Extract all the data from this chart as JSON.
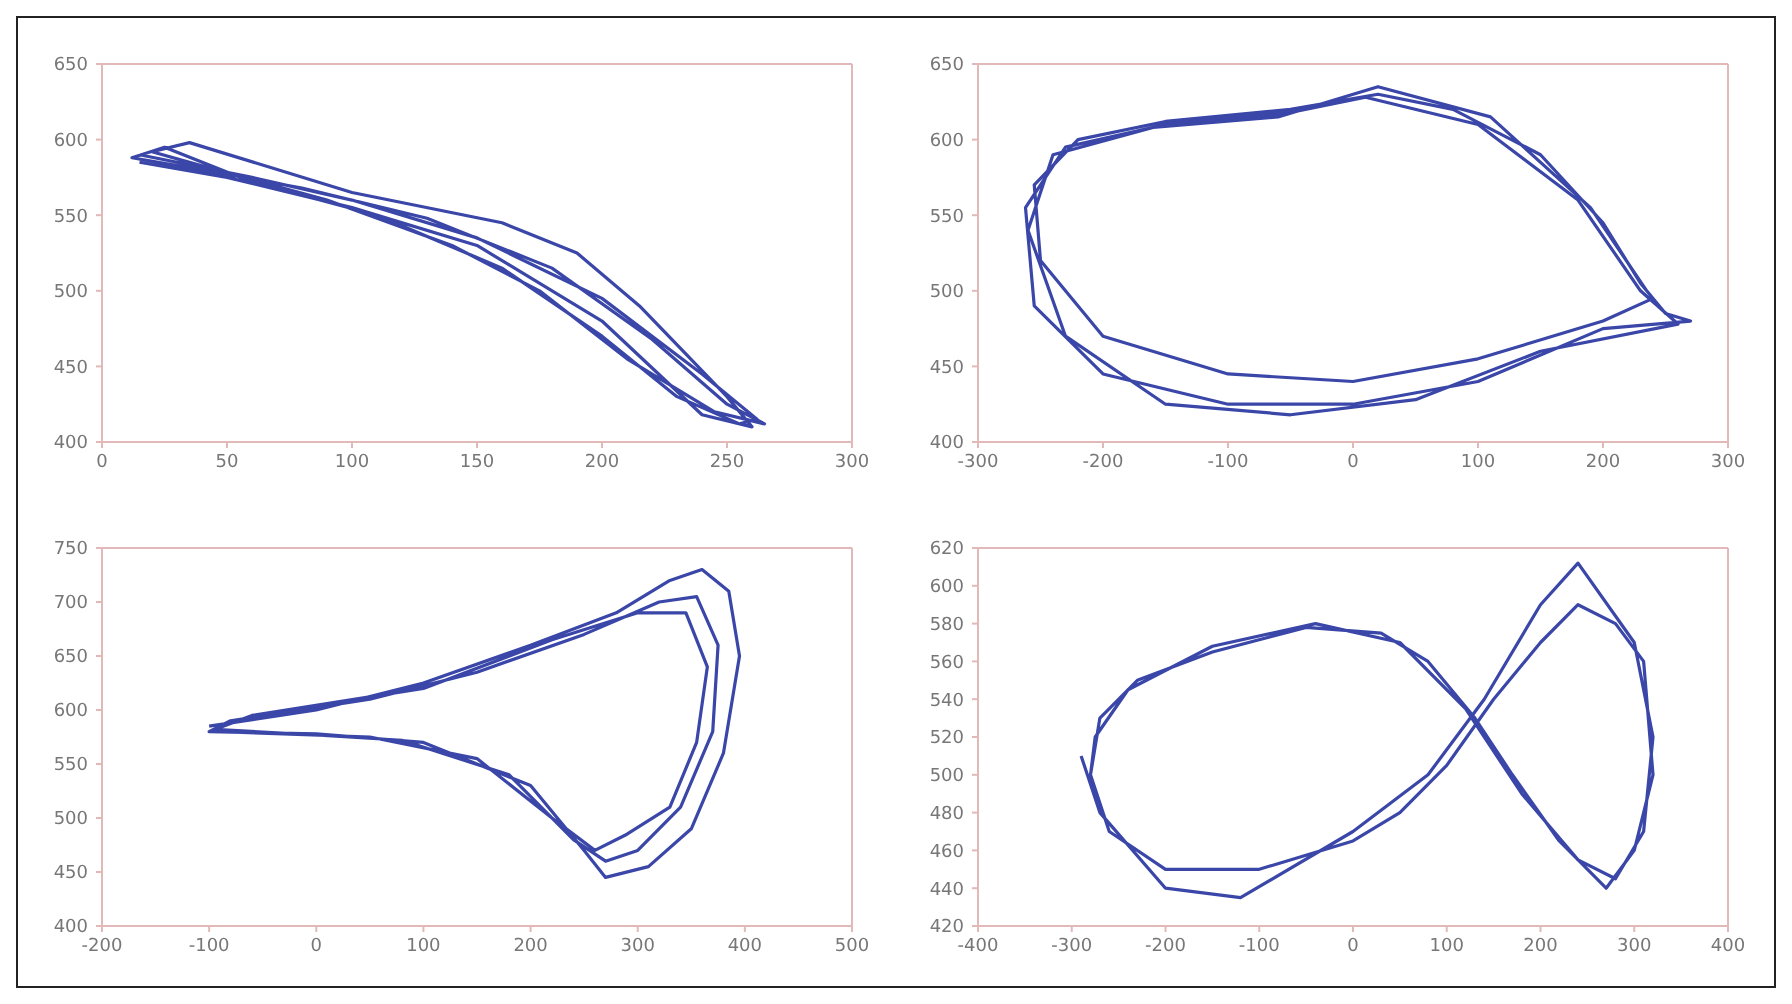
{
  "chart_data": [
    {
      "type": "line",
      "marker": "none",
      "grid": false,
      "xlim": [
        0,
        300
      ],
      "xticks": [
        0,
        50,
        100,
        150,
        200,
        250,
        300
      ],
      "ylim": [
        400,
        650
      ],
      "yticks": [
        400,
        450,
        500,
        550,
        600,
        650
      ],
      "series": [
        {
          "color": "#3a46a8",
          "x": [
            15,
            30,
            60,
            100,
            150,
            200,
            240,
            262,
            255,
            230,
            200,
            160,
            110,
            60,
            25,
            12,
            40,
            80,
            130,
            180,
            220,
            250,
            265,
            245,
            210,
            175,
            140,
            90,
            50,
            20,
            35,
            100,
            160,
            190,
            215,
            250,
            260,
            240,
            200,
            150,
            100,
            50,
            15
          ],
          "values": [
            590,
            585,
            575,
            560,
            535,
            495,
            445,
            415,
            412,
            430,
            470,
            515,
            550,
            572,
            595,
            588,
            580,
            568,
            548,
            515,
            468,
            425,
            412,
            420,
            455,
            500,
            530,
            560,
            578,
            592,
            598,
            565,
            545,
            525,
            490,
            430,
            410,
            418,
            480,
            530,
            555,
            575,
            585
          ]
        }
      ]
    },
    {
      "type": "line",
      "marker": "none",
      "grid": false,
      "xlim": [
        -300,
        300
      ],
      "xticks": [
        -300,
        -200,
        -100,
        0,
        100,
        200,
        300
      ],
      "ylim": [
        400,
        650
      ],
      "yticks": [
        400,
        450,
        500,
        550,
        600,
        650
      ],
      "series": [
        {
          "color": "#3a46a8",
          "x": [
            240,
            200,
            100,
            0,
            -100,
            -200,
            -250,
            -255,
            -220,
            -150,
            -50,
            20,
            80,
            150,
            200,
            230,
            250,
            270,
            200,
            100,
            0,
            -100,
            -200,
            -255,
            -262,
            -230,
            -150,
            -50,
            10,
            100,
            180,
            230,
            260,
            150,
            50,
            -50,
            -150,
            -230,
            -260,
            -240,
            -160,
            -60,
            20,
            110,
            190,
            235
          ],
          "values": [
            495,
            480,
            455,
            440,
            445,
            470,
            520,
            570,
            600,
            612,
            620,
            630,
            620,
            590,
            545,
            505,
            485,
            480,
            475,
            440,
            425,
            425,
            445,
            490,
            555,
            595,
            610,
            618,
            628,
            610,
            560,
            500,
            478,
            460,
            428,
            418,
            425,
            470,
            540,
            590,
            608,
            615,
            635,
            615,
            555,
            500
          ]
        }
      ]
    },
    {
      "type": "line",
      "marker": "none",
      "grid": false,
      "xlim": [
        -200,
        500
      ],
      "xticks": [
        -200,
        -100,
        0,
        100,
        200,
        300,
        400,
        500
      ],
      "ylim": [
        400,
        750
      ],
      "yticks": [
        400,
        450,
        500,
        550,
        600,
        650,
        700,
        750
      ],
      "series": [
        {
          "color": "#3a46a8",
          "x": [
            -100,
            0,
            100,
            200,
            280,
            330,
            360,
            385,
            395,
            380,
            350,
            310,
            270,
            250,
            200,
            100,
            0,
            -100,
            -80,
            50,
            150,
            250,
            320,
            355,
            375,
            370,
            340,
            300,
            270,
            240,
            180,
            80,
            -20,
            -95,
            -60,
            100,
            220,
            300,
            345,
            365,
            355,
            330,
            290,
            260,
            220,
            150,
            50,
            -90
          ],
          "values": [
            585,
            600,
            625,
            660,
            690,
            720,
            730,
            710,
            650,
            560,
            490,
            455,
            445,
            470,
            530,
            570,
            578,
            580,
            590,
            610,
            635,
            670,
            700,
            705,
            660,
            580,
            510,
            470,
            460,
            480,
            540,
            572,
            578,
            582,
            595,
            620,
            665,
            690,
            690,
            640,
            570,
            510,
            485,
            470,
            500,
            555,
            575,
            580
          ]
        }
      ]
    },
    {
      "type": "line",
      "marker": "none",
      "grid": false,
      "xlim": [
        -400,
        400
      ],
      "xticks": [
        -400,
        -300,
        -200,
        -100,
        0,
        100,
        200,
        300,
        400
      ],
      "ylim": [
        420,
        620
      ],
      "yticks": [
        420,
        440,
        460,
        480,
        500,
        520,
        540,
        560,
        580,
        600,
        620
      ],
      "series": [
        {
          "color": "#3a46a8",
          "x": [
            -280,
            -270,
            -230,
            -150,
            -50,
            30,
            80,
            130,
            170,
            220,
            270,
            300,
            320,
            310,
            280,
            240,
            200,
            150,
            100,
            50,
            0,
            -100,
            -200,
            -260,
            -280,
            -275,
            -240,
            -150,
            -40,
            50,
            120,
            180,
            240,
            280,
            310,
            320,
            300,
            240,
            200,
            140,
            80,
            0,
            -120,
            -200,
            -270,
            -290
          ],
          "values": [
            500,
            530,
            550,
            565,
            578,
            575,
            560,
            530,
            500,
            465,
            440,
            460,
            500,
            560,
            580,
            590,
            570,
            540,
            505,
            480,
            465,
            450,
            450,
            470,
            500,
            520,
            545,
            568,
            580,
            570,
            535,
            490,
            455,
            445,
            470,
            520,
            570,
            612,
            590,
            540,
            500,
            470,
            435,
            440,
            480,
            510
          ]
        }
      ]
    }
  ]
}
